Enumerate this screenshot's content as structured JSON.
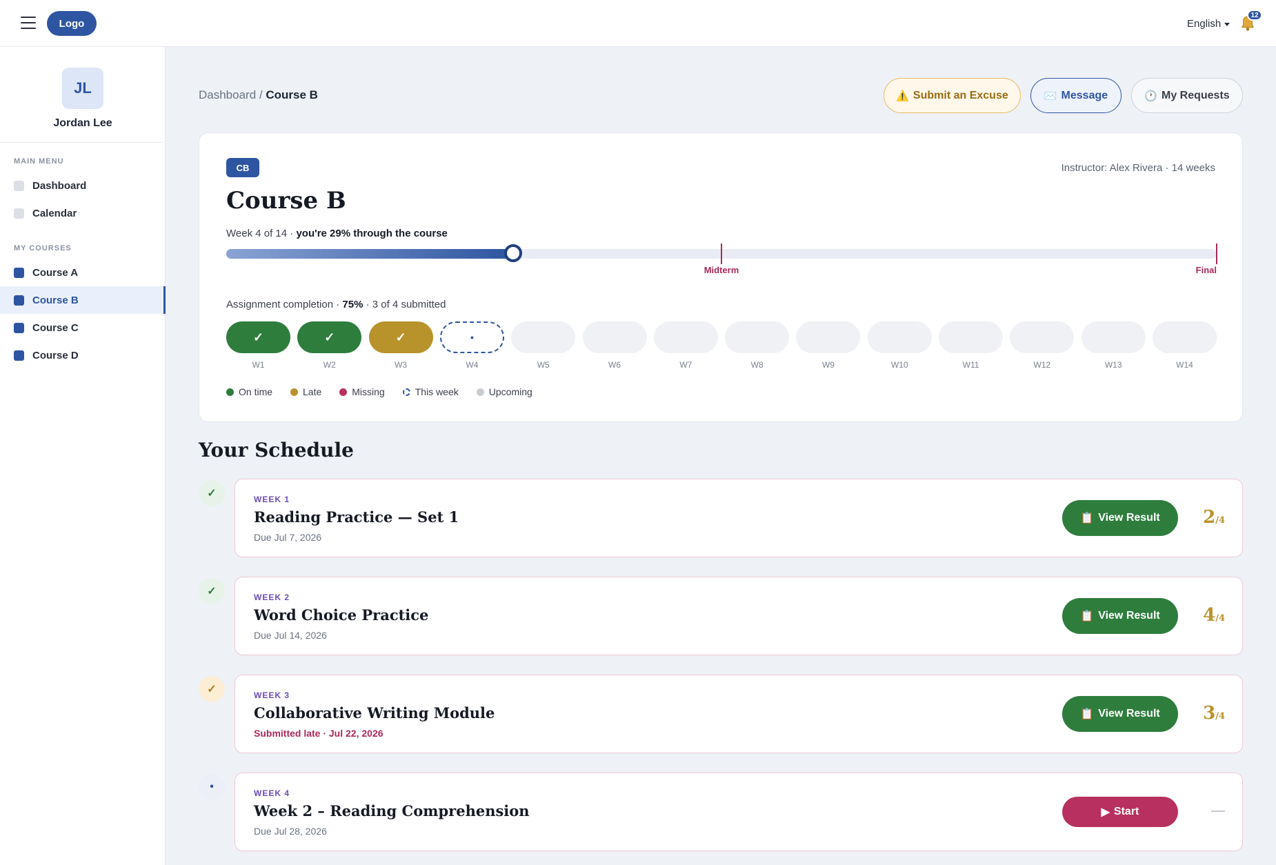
{
  "header": {
    "logo": "Logo",
    "language": "English",
    "notification_count": "12"
  },
  "sidebar": {
    "avatar_initials": "JL",
    "user_name": "Jordan Lee",
    "main_menu_label": "MAIN MENU",
    "main_items": [
      {
        "label": "Dashboard"
      },
      {
        "label": "Calendar"
      }
    ],
    "courses_label": "MY COURSES",
    "courses": [
      {
        "label": "Course A"
      },
      {
        "label": "Course B"
      },
      {
        "label": "Course C"
      },
      {
        "label": "Course D"
      }
    ]
  },
  "breadcrumb": {
    "parent": "Dashboard",
    "separator": " / ",
    "current": "Course B"
  },
  "actions": {
    "excuse": "Submit an Excuse",
    "message": "Message",
    "requests": "My Requests"
  },
  "course": {
    "badge": "CB",
    "instructor": "Instructor: Alex Rivera · 14 weeks",
    "title": "Course B",
    "week_text": "Week 4 of 14 · ",
    "progress_text": "you're 29% through the course",
    "progress_fraction": 0.29,
    "milestones": [
      {
        "label": "Midterm",
        "fraction": 0.5
      },
      {
        "label": "Final",
        "fraction": 1.0
      }
    ],
    "completion_prefix": "Assignment completion · ",
    "completion_pct": "75%",
    "completion_suffix": " · 3 of 4 submitted",
    "weeks": [
      {
        "label": "W1",
        "status": "ontime",
        "mark": "✓"
      },
      {
        "label": "W2",
        "status": "ontime",
        "mark": "✓"
      },
      {
        "label": "W3",
        "status": "late",
        "mark": "✓"
      },
      {
        "label": "W4",
        "status": "current",
        "mark": "•"
      },
      {
        "label": "W5",
        "status": "upcoming",
        "mark": ""
      },
      {
        "label": "W6",
        "status": "upcoming",
        "mark": ""
      },
      {
        "label": "W7",
        "status": "upcoming",
        "mark": ""
      },
      {
        "label": "W8",
        "status": "upcoming",
        "mark": ""
      },
      {
        "label": "W9",
        "status": "upcoming",
        "mark": ""
      },
      {
        "label": "W10",
        "status": "upcoming",
        "mark": ""
      },
      {
        "label": "W11",
        "status": "upcoming",
        "mark": ""
      },
      {
        "label": "W12",
        "status": "upcoming",
        "mark": ""
      },
      {
        "label": "W13",
        "status": "upcoming",
        "mark": ""
      },
      {
        "label": "W14",
        "status": "upcoming",
        "mark": ""
      }
    ],
    "legend": [
      {
        "label": "On time",
        "color": "#2e7d3d"
      },
      {
        "label": "Late",
        "color": "#b8922a"
      },
      {
        "label": "Missing",
        "color": "#b8305f"
      },
      {
        "label": "This week",
        "color": "dashed"
      },
      {
        "label": "Upcoming",
        "color": "#c9ccd3"
      }
    ]
  },
  "schedule": {
    "title": "Your Schedule",
    "rows": [
      {
        "week": "WEEK 1",
        "title": "Reading Practice — Set 1",
        "due": "Due Jul 7, 2026",
        "due_late": false,
        "status_mark": "✓",
        "status": "ontime",
        "button": "View Result",
        "button_icon": "clipboard-icon",
        "score": "2",
        "score_total": "/4"
      },
      {
        "week": "WEEK 2",
        "title": "Word Choice Practice",
        "due": "Due Jul 14, 2026",
        "due_late": false,
        "status_mark": "✓",
        "status": "ontime",
        "button": "View Result",
        "button_icon": "clipboard-icon",
        "score": "4",
        "score_total": "/4"
      },
      {
        "week": "WEEK 3",
        "title": "Collaborative Writing Module",
        "due": "Submitted late · Jul 22, 2026",
        "due_late": true,
        "status_mark": "✓",
        "status": "late",
        "button": "View Result",
        "button_icon": "clipboard-icon",
        "score": "3",
        "score_total": "/4"
      },
      {
        "week": "WEEK 4",
        "title": "Week 2 – Reading Comprehension",
        "due": "Due Jul 28, 2026",
        "due_late": false,
        "status_mark": "•",
        "status": "current",
        "button": "Start",
        "button_icon": "play-icon",
        "score": "",
        "score_total": ""
      }
    ]
  },
  "colors": {
    "primary": "#2e55a1",
    "ontime": "#2e7d3d",
    "late": "#b8922a",
    "missing": "#b8305f"
  }
}
